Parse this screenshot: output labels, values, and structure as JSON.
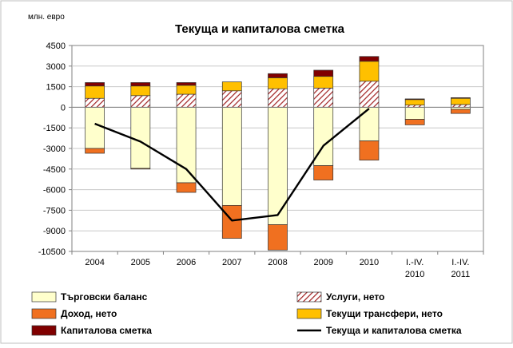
{
  "chart_data": {
    "type": "bar",
    "stacked": true,
    "title": "Текуща и капиталова сметка",
    "unit_label": "млн. евро",
    "ylim": [
      -10500,
      4500
    ],
    "yticks": [
      4500,
      3000,
      1500,
      0,
      -1500,
      -3000,
      -4500,
      -6000,
      -7500,
      -9000,
      -10500
    ],
    "gridlines": true,
    "legend_position": "bottom",
    "categories": [
      [
        "2004"
      ],
      [
        "2005"
      ],
      [
        "2006"
      ],
      [
        "2007"
      ],
      [
        "2008"
      ],
      [
        "2009"
      ],
      [
        "2010"
      ],
      [
        "I.-IV.",
        "2010"
      ],
      [
        "I.-IV.",
        "2011"
      ]
    ],
    "series": [
      {
        "name": "Търговски баланс",
        "kind": "bar",
        "color": "#FFFFCC",
        "pattern": "none",
        "values": [
          -3000,
          -4450,
          -5500,
          -7150,
          -8550,
          -4250,
          -2450,
          -880,
          -150
        ]
      },
      {
        "name": "Услуги, нето",
        "kind": "bar",
        "color": "#C0504D",
        "pattern": "hatch",
        "values": [
          650,
          850,
          950,
          1200,
          1350,
          1400,
          1900,
          160,
          200
        ]
      },
      {
        "name": "Доход, нето",
        "kind": "bar",
        "color": "#F07020",
        "pattern": "none",
        "values": [
          -350,
          -50,
          -700,
          -2400,
          -1850,
          -1050,
          -1400,
          -400,
          -300
        ]
      },
      {
        "name": "Текущи трансфери, нето",
        "kind": "bar",
        "color": "#FFC000",
        "pattern": "none",
        "values": [
          900,
          700,
          650,
          650,
          800,
          850,
          1450,
          400,
          450
        ]
      },
      {
        "name": "Капиталова сметка",
        "kind": "bar",
        "color": "#800000",
        "pattern": "none",
        "values": [
          250,
          250,
          200,
          0,
          300,
          450,
          350,
          50,
          50
        ]
      },
      {
        "name": "Текуща и капиталова сметка",
        "kind": "line",
        "color": "#000000",
        "values": [
          -1200,
          -2500,
          -4500,
          -8250,
          -7850,
          -2800,
          -100,
          null,
          null
        ]
      }
    ],
    "colors": {
      "grid": "#c8c8c8",
      "axis": "#808080",
      "text": "#000000"
    }
  }
}
